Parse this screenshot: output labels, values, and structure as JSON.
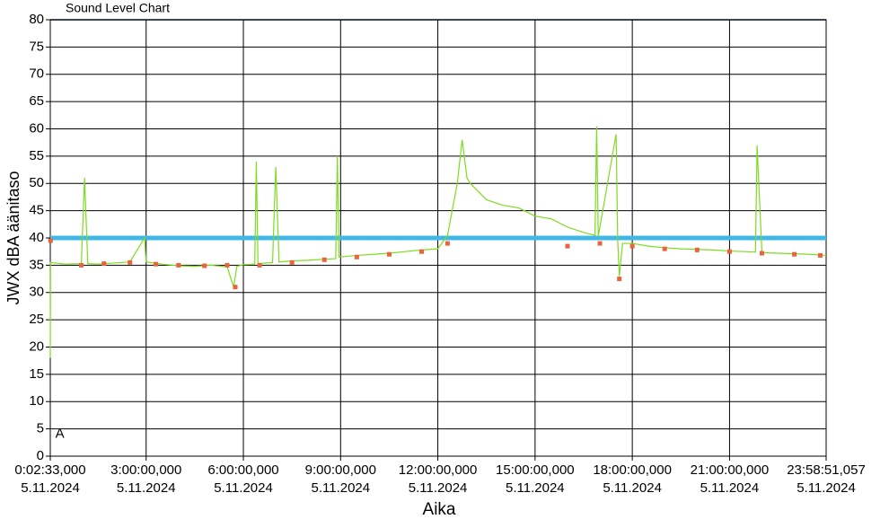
{
  "chart_data": {
    "type": "line",
    "title": "Sound Level Chart",
    "y_label": "JWX dBA äänitaso",
    "x_label": "Aika",
    "xlim": [
      0.0425,
      23.9808
    ],
    "ylim": [
      0,
      80
    ],
    "yticks": [
      0,
      5,
      10,
      15,
      20,
      25,
      30,
      35,
      40,
      45,
      50,
      55,
      60,
      65,
      70,
      75,
      80
    ],
    "xticks": [
      {
        "value": 0.0425,
        "label": "0:02:33,000\n5.11.2024"
      },
      {
        "value": 3,
        "label": "3:00:00,000\n5.11.2024"
      },
      {
        "value": 6,
        "label": "6:00:00,000\n5.11.2024"
      },
      {
        "value": 9,
        "label": "9:00:00,000\n5.11.2024"
      },
      {
        "value": 12,
        "label": "12:00:00,000\n5.11.2024"
      },
      {
        "value": 15,
        "label": "15:00:00,000\n5.11.2024"
      },
      {
        "value": 18,
        "label": "18:00:00,000\n5.11.2024"
      },
      {
        "value": 21,
        "label": "21:00:00,000\n5.11.2024"
      },
      {
        "value": 23.9808,
        "label": "23:58:51,057\n5.11.2024"
      }
    ],
    "grid": true,
    "reference_line": {
      "value": 40,
      "color": "#3fb8e8"
    },
    "annotations": [
      {
        "text": "A",
        "x": 0.2,
        "y": 4
      }
    ],
    "series": [
      {
        "style": "line",
        "color": "#7ddc1f",
        "x": [
          0.0425,
          0.05,
          0.5,
          1.0,
          1.1,
          1.2,
          1.5,
          2.0,
          2.5,
          2.95,
          3.0,
          3.5,
          4.0,
          4.5,
          5.0,
          5.5,
          5.7,
          5.8,
          6.0,
          6.35,
          6.4,
          6.45,
          6.9,
          7.0,
          7.1,
          7.5,
          8.0,
          8.5,
          8.85,
          8.9,
          8.95,
          9.5,
          10.0,
          10.5,
          11.0,
          11.5,
          12.0,
          12.3,
          12.6,
          12.75,
          12.9,
          13.0,
          13.5,
          14.0,
          14.5,
          15.0,
          15.5,
          16.0,
          16.5,
          16.85,
          16.9,
          16.95,
          17.5,
          17.55,
          17.6,
          17.7,
          18.0,
          18.5,
          19.0,
          19.5,
          20.0,
          20.5,
          21.0,
          21.5,
          21.8,
          21.85,
          22.0,
          22.5,
          23.0,
          23.5,
          23.98
        ],
        "values": [
          18,
          35.5,
          35.2,
          35.3,
          51,
          35.3,
          35.2,
          35.4,
          35.6,
          40,
          35.6,
          35.2,
          34.9,
          34.8,
          35.0,
          34.7,
          31,
          34.8,
          35.1,
          35.2,
          54,
          35.3,
          35.5,
          53,
          35.6,
          35.8,
          35.9,
          36.1,
          36.2,
          55,
          36.5,
          36.8,
          37.0,
          37.2,
          37.5,
          37.8,
          38.0,
          40.5,
          50,
          58,
          51,
          50,
          47,
          46,
          45.5,
          44,
          43.5,
          42,
          41,
          40.5,
          60.5,
          40.3,
          59,
          39.5,
          33,
          39,
          39,
          38.5,
          38.2,
          38,
          37.9,
          37.8,
          37.6,
          37.5,
          37.4,
          57,
          37.3,
          37.2,
          37.1,
          37,
          36.8
        ]
      },
      {
        "style": "markers",
        "color": "#e8643c",
        "x": [
          0.05,
          1.0,
          1.7,
          2.5,
          3.3,
          4.0,
          4.8,
          5.5,
          5.75,
          6.5,
          7.5,
          8.5,
          9.5,
          10.5,
          11.5,
          12.3,
          16.0,
          17.0,
          17.6,
          18.0,
          19.0,
          20.0,
          21.0,
          22.0,
          23.0,
          23.8
        ],
        "values": [
          39.5,
          35,
          35.3,
          35.5,
          35.2,
          35,
          34.9,
          35,
          31,
          35,
          35.5,
          36,
          36.5,
          37,
          37.5,
          39,
          38.5,
          39,
          32.5,
          38.5,
          38,
          37.8,
          37.5,
          37.2,
          37,
          36.8
        ]
      }
    ]
  }
}
